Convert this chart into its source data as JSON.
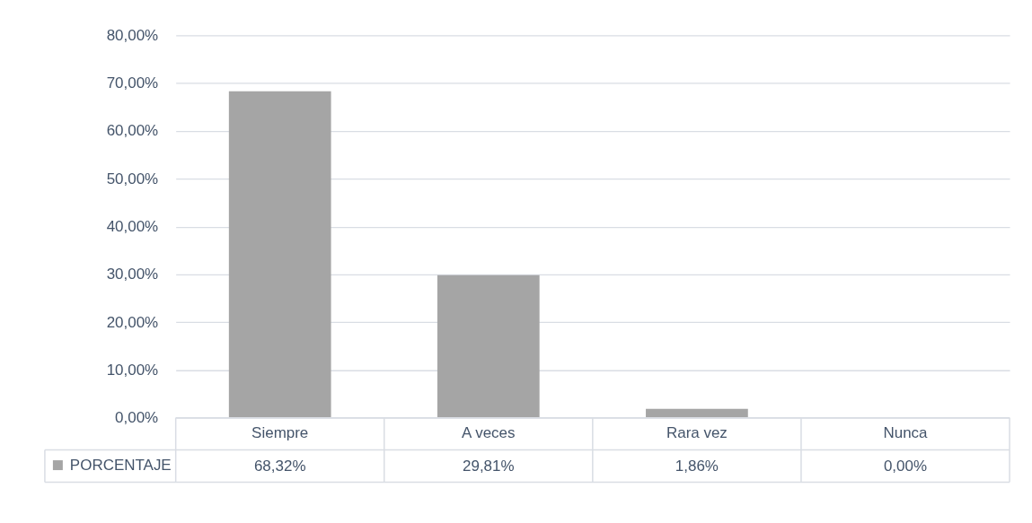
{
  "chart_data": {
    "type": "bar",
    "categories": [
      "Siempre",
      "A veces",
      "Rara vez",
      "Nunca"
    ],
    "series": [
      {
        "name": "PORCENTAJE",
        "color": "#a5a5a5",
        "values": [
          68.32,
          29.81,
          1.86,
          0.0
        ],
        "value_labels": [
          "68,32%",
          "29,81%",
          "1,86%",
          "0,00%"
        ]
      }
    ],
    "ylim": [
      0,
      80
    ],
    "yticks": [
      {
        "value": 0,
        "label": "0,00%"
      },
      {
        "value": 10,
        "label": "10,00%"
      },
      {
        "value": 20,
        "label": "20,00%"
      },
      {
        "value": 30,
        "label": "30,00%"
      },
      {
        "value": 40,
        "label": "40,00%"
      },
      {
        "value": 50,
        "label": "50,00%"
      },
      {
        "value": 60,
        "label": "60,00%"
      },
      {
        "value": 70,
        "label": "70,00%"
      },
      {
        "value": 80,
        "label": "80,00%"
      }
    ],
    "grid": "y",
    "legend": "bottom left"
  }
}
